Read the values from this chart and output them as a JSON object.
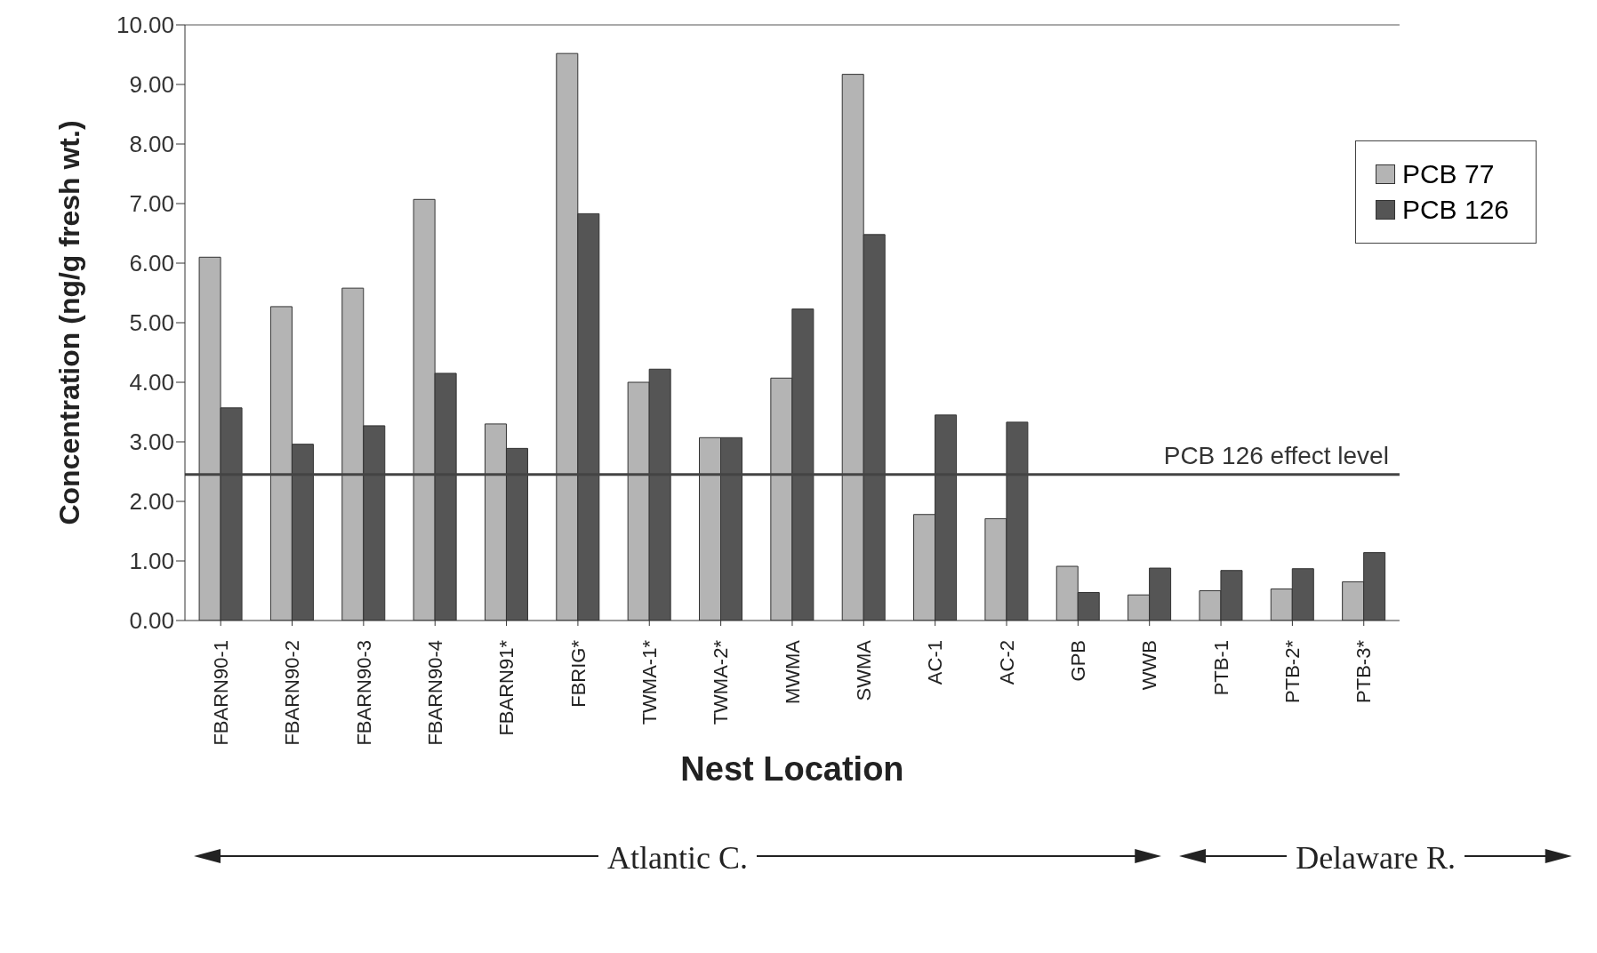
{
  "chart_data": {
    "type": "bar",
    "xlabel": "Nest Location",
    "ylabel": "Concentration (ng/g fresh wt.)",
    "categories": [
      "FBARN90-1",
      "FBARN90-2",
      "FBARN90-3",
      "FBARN90-4",
      "FBARN91*",
      "FBRIG*",
      "TWMA-1*",
      "TWMA-2*",
      "MWMA",
      "SWMA",
      "AC-1",
      "AC-2",
      "GPB",
      "WWB",
      "PTB-1",
      "PTB-2*",
      "PTB-3*"
    ],
    "series": [
      {
        "name": "PCB 77",
        "color": "#b4b4b4",
        "values": [
          6.1,
          5.27,
          5.58,
          7.07,
          3.3,
          9.52,
          4.0,
          3.07,
          4.07,
          9.17,
          1.78,
          1.71,
          0.91,
          0.43,
          0.5,
          0.53,
          0.65
        ]
      },
      {
        "name": "PCB 126",
        "color": "#555555",
        "values": [
          3.57,
          2.96,
          3.27,
          4.15,
          2.89,
          6.83,
          4.22,
          3.07,
          5.23,
          6.48,
          3.45,
          3.33,
          0.47,
          0.88,
          0.84,
          0.87,
          1.14
        ]
      }
    ],
    "ylim": [
      0,
      10
    ],
    "yticks": [
      {
        "value": 0,
        "label": "0.00"
      },
      {
        "value": 1,
        "label": "1.00"
      },
      {
        "value": 2,
        "label": "2.00"
      },
      {
        "value": 3,
        "label": "3.00"
      },
      {
        "value": 4,
        "label": "4.00"
      },
      {
        "value": 5,
        "label": "5.00"
      },
      {
        "value": 6,
        "label": "6.00"
      },
      {
        "value": 7,
        "label": "7.00"
      },
      {
        "value": 8,
        "label": "8.00"
      },
      {
        "value": 9,
        "label": "9.00"
      },
      {
        "value": 10,
        "label": "10.00"
      }
    ],
    "ref_lines": [
      {
        "axis": "y",
        "value": 2.45,
        "label": "PCB 126 effect level",
        "color": "#444444"
      }
    ],
    "annotations": [
      "Atlantic C.",
      "Delaware R."
    ],
    "legend": "top right"
  }
}
